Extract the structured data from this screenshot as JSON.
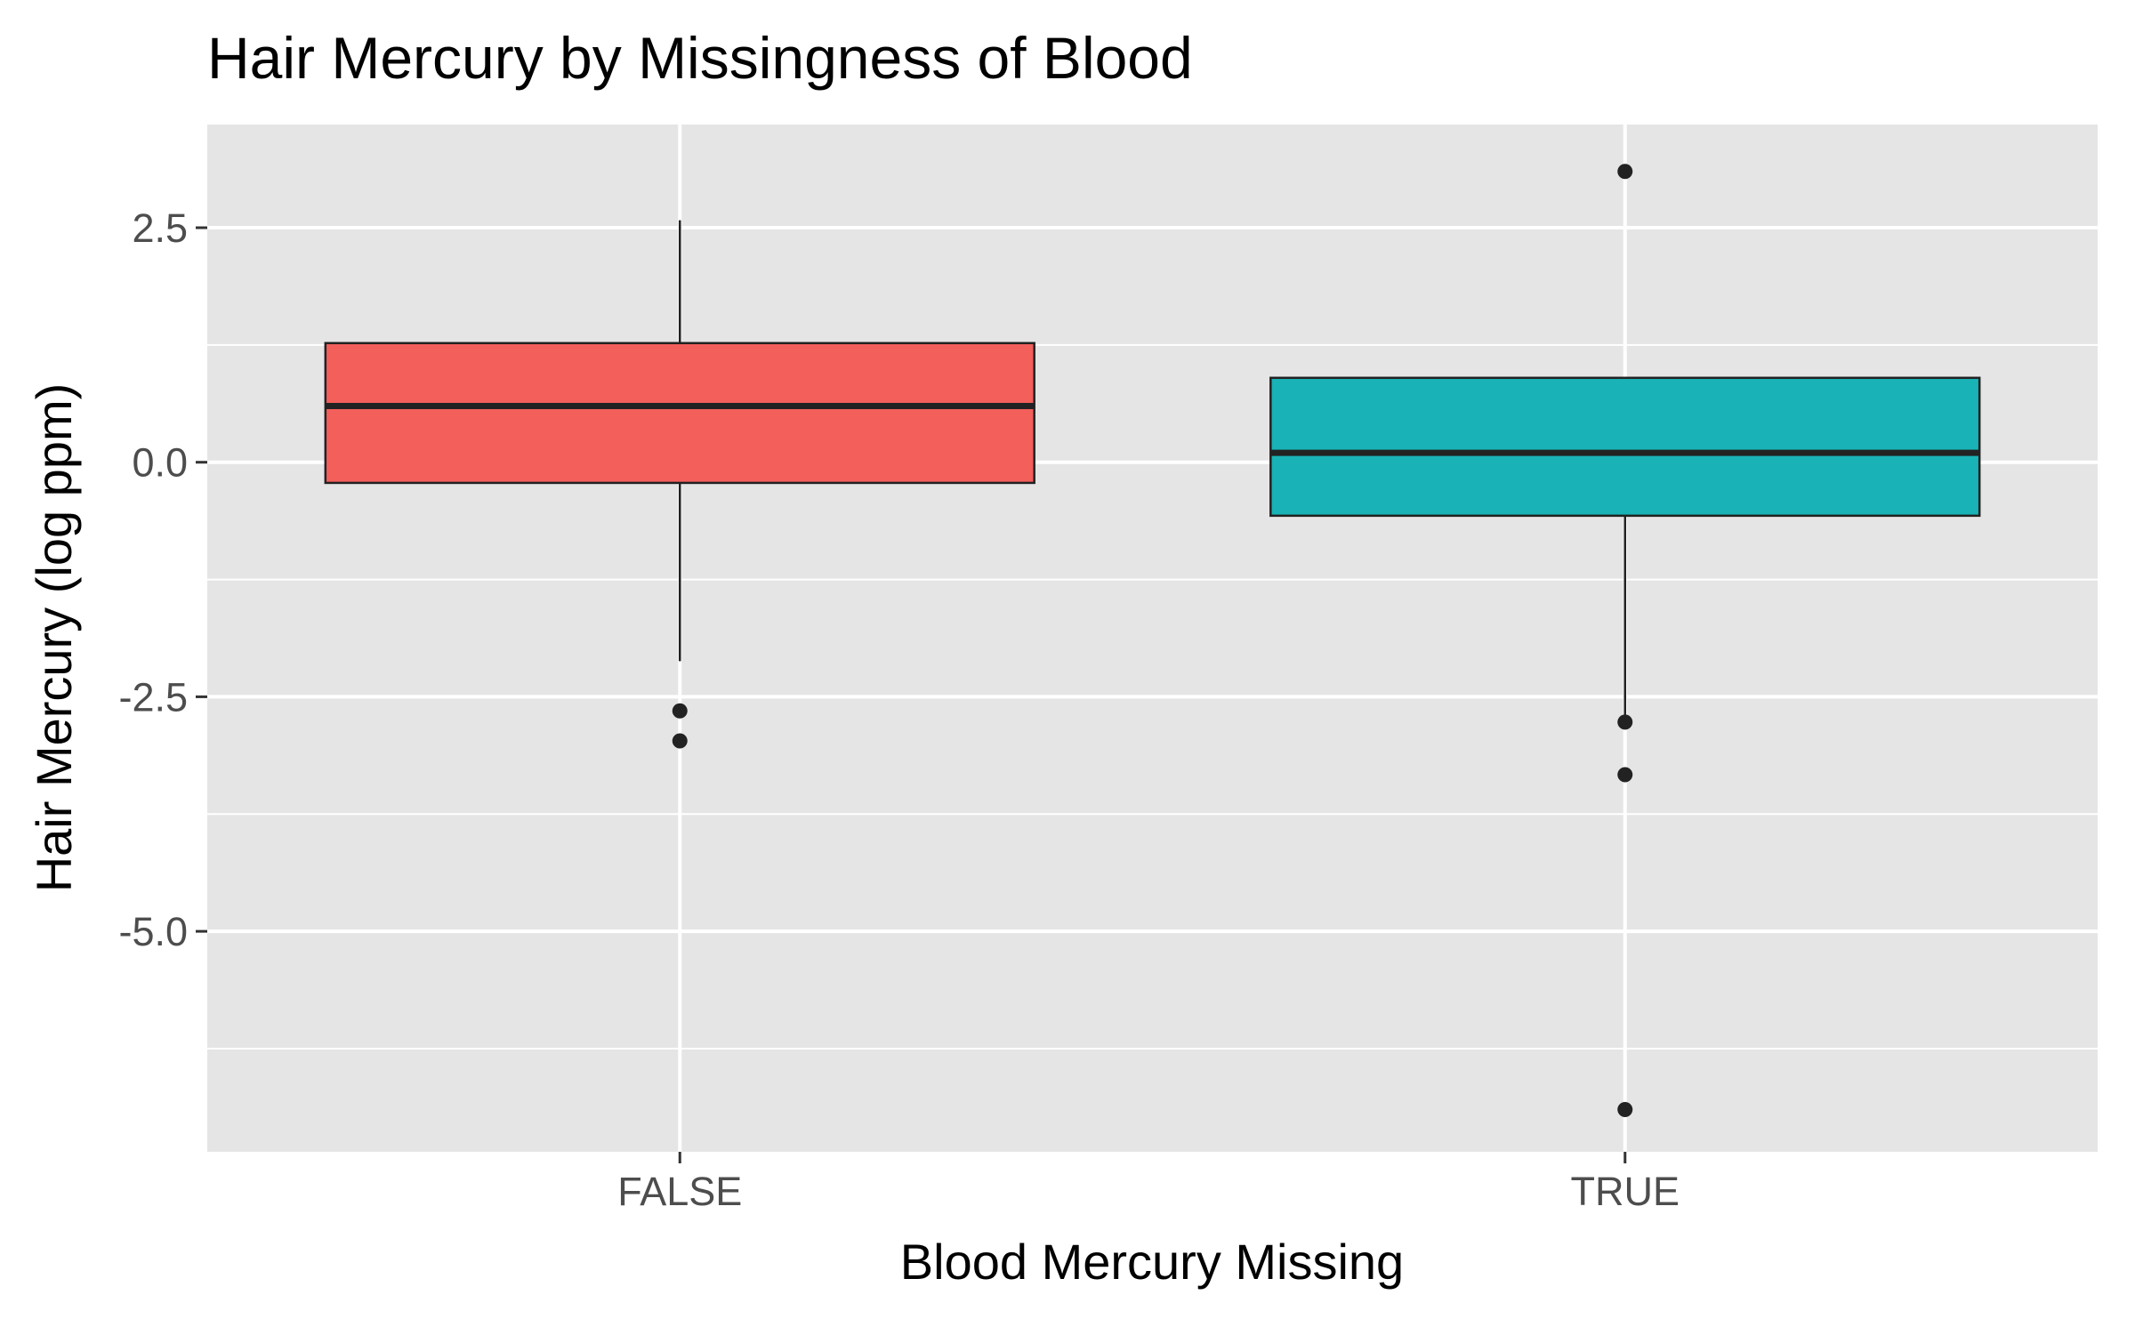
{
  "chart_data": {
    "type": "boxplot",
    "title": "Hair Mercury by Missingness of Blood",
    "xlabel": "Blood Mercury Missing",
    "ylabel": "Hair Mercury (log ppm)",
    "categories": [
      "FALSE",
      "TRUE"
    ],
    "ylim": [
      -7.35,
      3.6
    ],
    "y_ticks": [
      {
        "value": 2.5,
        "label": "2.5"
      },
      {
        "value": 0.0,
        "label": "0.0"
      },
      {
        "value": -2.5,
        "label": "-2.5"
      },
      {
        "value": -5.0,
        "label": "-5.0"
      }
    ],
    "y_minor_ticks": [
      1.25,
      -1.25,
      -3.75,
      -6.25
    ],
    "grid": true,
    "legend": "none",
    "boxes": [
      {
        "category": "FALSE",
        "fill": "#F35F5B",
        "whisker_low": -2.12,
        "q1": -0.22,
        "median": 0.6,
        "q3": 1.27,
        "whisker_high": 2.58,
        "outliers": [
          -2.65,
          -2.97
        ]
      },
      {
        "category": "TRUE",
        "fill": "#19B2B6",
        "whisker_low": -2.75,
        "q1": -0.57,
        "median": 0.1,
        "q3": 0.9,
        "whisker_high": 0.9,
        "outliers": [
          -2.77,
          -3.33,
          -6.9,
          3.1
        ]
      }
    ],
    "colors": {
      "panel_background": "#E5E5E5",
      "grid_major": "#FFFFFF",
      "grid_minor": "#F2F2F2",
      "box_outline": "#222222"
    }
  }
}
